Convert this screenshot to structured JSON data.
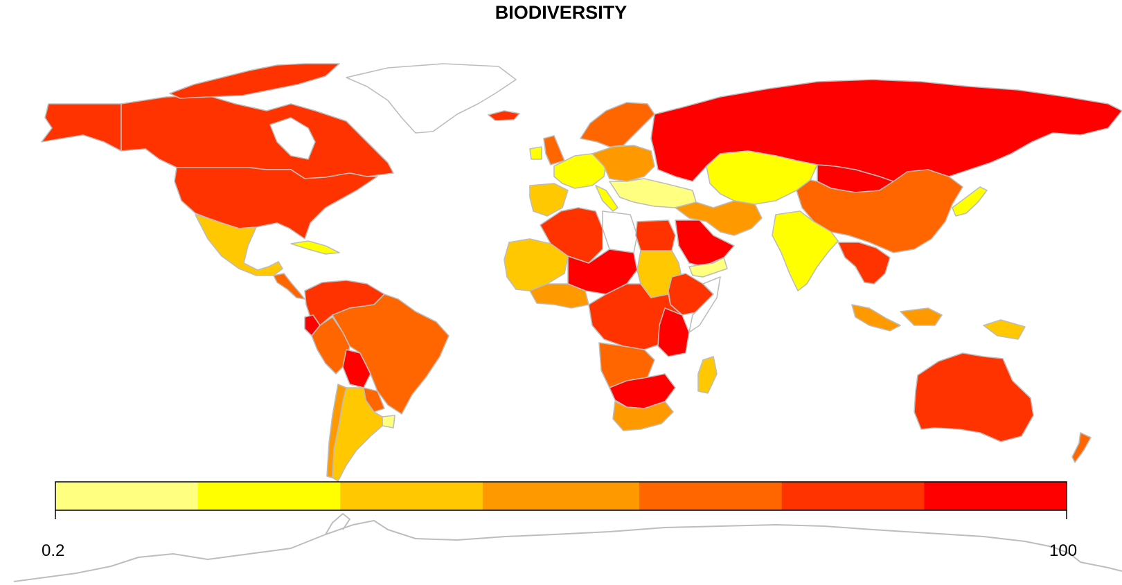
{
  "title": "BIODIVERSITY",
  "legend": {
    "min_label": "0.2",
    "max_label": "100",
    "bins": [
      {
        "color": "#FFFF80"
      },
      {
        "color": "#FFFF00"
      },
      {
        "color": "#FFC800"
      },
      {
        "color": "#FF9900"
      },
      {
        "color": "#FF6600"
      },
      {
        "color": "#FF3300"
      },
      {
        "color": "#FF0000"
      }
    ]
  },
  "colors": {
    "border": "#bdbdbd",
    "no_data": "#ffffff"
  }
}
